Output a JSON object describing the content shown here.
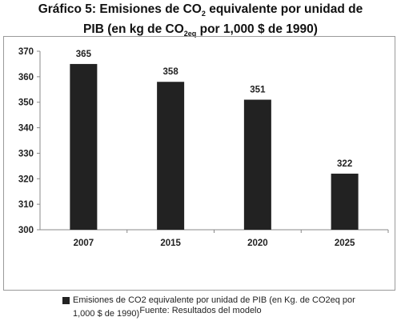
{
  "title": {
    "line1_pre": "Gráfico 5: Emisiones de CO",
    "line1_sub": "2",
    "line1_post": " equivalente por unidad de",
    "line2_pre": "PIB (en kg de CO",
    "line2_sub": "2eq",
    "line2_post": " por 1,000 $ de 1990)"
  },
  "source": "Fuente: Resultados del modelo",
  "chart_data": {
    "type": "bar",
    "categories": [
      "2007",
      "2015",
      "2020",
      "2025"
    ],
    "series": [
      {
        "name": "Emisiones de CO2 equivalente por unidad de PIB (en Kg. de CO2eq por 1,000 $ de 1990)",
        "values": [
          365,
          358,
          351,
          322
        ],
        "color": "#222222"
      }
    ],
    "data_labels": [
      "365",
      "358",
      "351",
      "322"
    ],
    "yticks": [
      "300",
      "310",
      "320",
      "330",
      "340",
      "350",
      "360",
      "370"
    ],
    "ylim": [
      300,
      370
    ],
    "grid": false,
    "legend_position": "bottom"
  }
}
